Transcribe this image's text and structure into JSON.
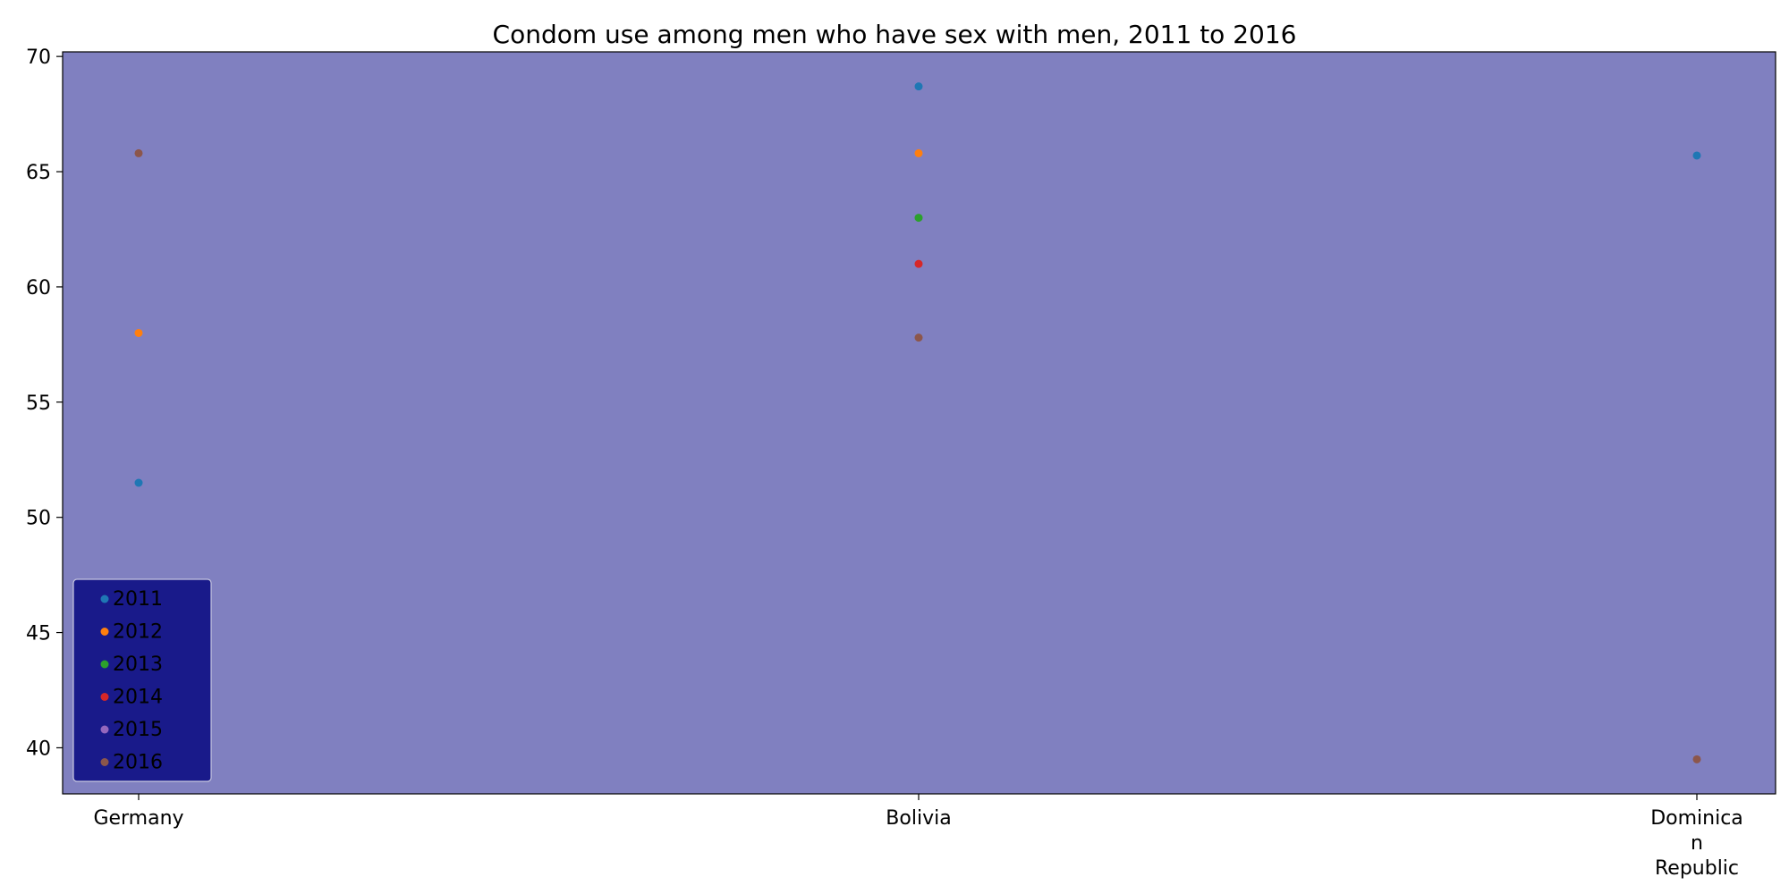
{
  "chart_data": {
    "type": "scatter",
    "title": "Condom use among men who have sex with men, 2011 to 2016",
    "xlabel": "",
    "ylabel": "",
    "categories": [
      "Germany",
      "Bolivia",
      "Dominican Republic"
    ],
    "category_labels": [
      [
        "Germany"
      ],
      [
        "Bolivia"
      ],
      [
        "Dominica",
        "n",
        "Republic"
      ]
    ],
    "ylim": [
      38,
      70.2
    ],
    "yticks": [
      40,
      45,
      50,
      55,
      60,
      65,
      70
    ],
    "grid": false,
    "legend_position": "lower-left",
    "colors": {
      "plot_background": "#8080c0",
      "legend_background": "#191a8a",
      "legend_border": "#c8c8e0",
      "axis": "#000000"
    },
    "series": [
      {
        "name": "2011",
        "color": "#1f77b4",
        "values": [
          51.5,
          68.7,
          65.7
        ]
      },
      {
        "name": "2012",
        "color": "#ff7f0e",
        "values": [
          58.0,
          65.8,
          null
        ]
      },
      {
        "name": "2013",
        "color": "#2ca02c",
        "values": [
          null,
          63.0,
          null
        ]
      },
      {
        "name": "2014",
        "color": "#d62728",
        "values": [
          null,
          61.0,
          null
        ]
      },
      {
        "name": "2015",
        "color": "#9467bd",
        "values": [
          null,
          null,
          null
        ]
      },
      {
        "name": "2016",
        "color": "#8c564b",
        "values": [
          65.8,
          57.8,
          39.5
        ]
      }
    ]
  }
}
